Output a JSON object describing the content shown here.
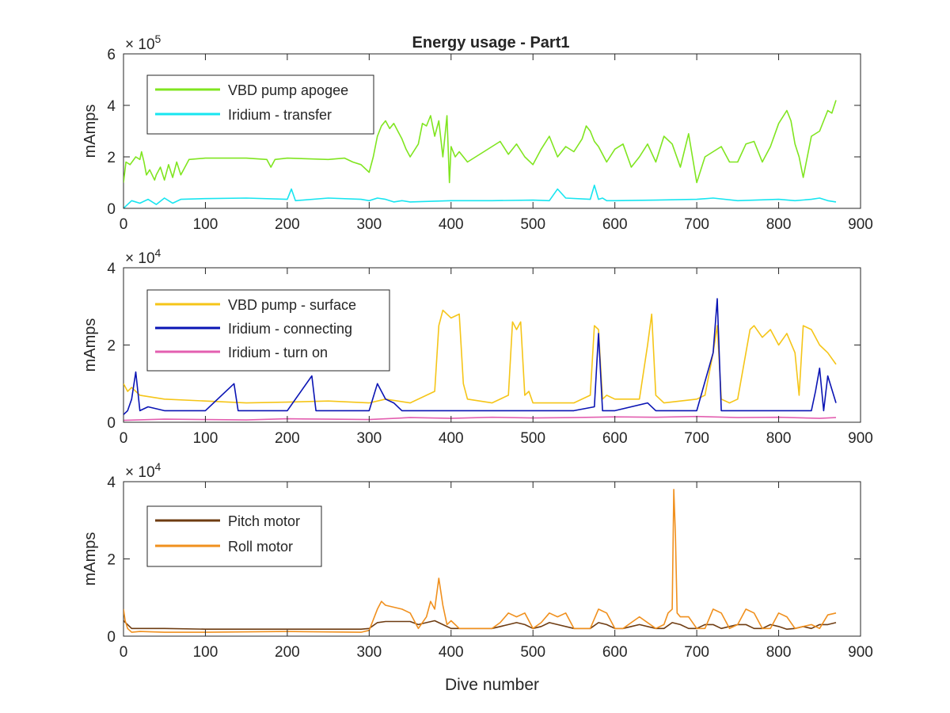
{
  "figure": {
    "title": "Energy usage - Part1"
  },
  "chart_data": [
    {
      "type": "line",
      "title": "Energy usage - Part1",
      "xlabel": "",
      "ylabel": "mAmps",
      "exponent_base": "× 10",
      "exponent_power": "5",
      "xlim": [
        0,
        900
      ],
      "ylim": [
        0,
        600000
      ],
      "xticks": [
        "0",
        "100",
        "200",
        "300",
        "400",
        "500",
        "600",
        "700",
        "800",
        "900"
      ],
      "yticks": [
        "0",
        "2",
        "4",
        "6"
      ],
      "ytick_values": [
        0,
        200000,
        400000,
        600000
      ],
      "grid": false,
      "legend_position": "top-left",
      "series": [
        {
          "name": "VBD pump apogee",
          "color": "#80e520",
          "x": [
            0,
            3,
            8,
            15,
            20,
            22,
            25,
            28,
            32,
            38,
            40,
            45,
            50,
            55,
            60,
            65,
            70,
            80,
            100,
            150,
            175,
            180,
            185,
            200,
            250,
            270,
            280,
            290,
            300,
            305,
            310,
            315,
            320,
            325,
            330,
            335,
            340,
            345,
            350,
            360,
            365,
            370,
            375,
            380,
            385,
            390,
            395,
            398,
            400,
            405,
            410,
            420,
            440,
            460,
            470,
            480,
            490,
            500,
            510,
            520,
            530,
            540,
            550,
            560,
            565,
            570,
            575,
            580,
            590,
            600,
            610,
            620,
            630,
            640,
            650,
            660,
            670,
            680,
            690,
            700,
            710,
            720,
            730,
            740,
            750,
            760,
            770,
            780,
            790,
            800,
            810,
            815,
            820,
            825,
            830,
            840,
            850,
            860,
            865,
            870
          ],
          "y": [
            100000,
            180000,
            170000,
            200000,
            190000,
            220000,
            180000,
            130000,
            150000,
            110000,
            130000,
            160000,
            110000,
            170000,
            120000,
            180000,
            130000,
            190000,
            195000,
            195000,
            190000,
            160000,
            190000,
            195000,
            190000,
            195000,
            180000,
            170000,
            140000,
            200000,
            280000,
            320000,
            340000,
            310000,
            330000,
            300000,
            270000,
            230000,
            200000,
            250000,
            330000,
            320000,
            360000,
            280000,
            340000,
            200000,
            360000,
            100000,
            240000,
            200000,
            220000,
            180000,
            220000,
            260000,
            210000,
            250000,
            200000,
            170000,
            230000,
            280000,
            200000,
            240000,
            220000,
            270000,
            320000,
            300000,
            260000,
            240000,
            180000,
            230000,
            250000,
            160000,
            200000,
            250000,
            180000,
            280000,
            250000,
            160000,
            290000,
            100000,
            200000,
            220000,
            240000,
            180000,
            180000,
            250000,
            260000,
            180000,
            240000,
            330000,
            380000,
            340000,
            250000,
            200000,
            120000,
            280000,
            300000,
            380000,
            370000,
            420000
          ]
        },
        {
          "name": "Iridium - transfer",
          "color": "#17e5f0",
          "x": [
            0,
            5,
            10,
            20,
            30,
            40,
            50,
            60,
            70,
            100,
            150,
            200,
            205,
            210,
            250,
            290,
            300,
            310,
            320,
            330,
            340,
            350,
            380,
            400,
            450,
            500,
            520,
            530,
            540,
            570,
            575,
            580,
            585,
            590,
            600,
            650,
            700,
            720,
            750,
            800,
            820,
            840,
            850,
            860,
            870
          ],
          "y": [
            0,
            15000,
            30000,
            20000,
            35000,
            15000,
            40000,
            20000,
            35000,
            38000,
            40000,
            35000,
            75000,
            30000,
            40000,
            35000,
            30000,
            40000,
            35000,
            25000,
            30000,
            25000,
            28000,
            30000,
            30000,
            32000,
            30000,
            75000,
            40000,
            35000,
            90000,
            35000,
            40000,
            30000,
            30000,
            32000,
            35000,
            40000,
            30000,
            35000,
            30000,
            35000,
            40000,
            30000,
            25000
          ]
        }
      ]
    },
    {
      "type": "line",
      "title": "",
      "xlabel": "",
      "ylabel": "mAmps",
      "exponent_base": "× 10",
      "exponent_power": "4",
      "xlim": [
        0,
        900
      ],
      "ylim": [
        0,
        40000
      ],
      "xticks": [
        "0",
        "100",
        "200",
        "300",
        "400",
        "500",
        "600",
        "700",
        "800",
        "900"
      ],
      "yticks": [
        "0",
        "2",
        "4"
      ],
      "ytick_values": [
        0,
        20000,
        40000
      ],
      "grid": false,
      "legend_position": "top-left",
      "series": [
        {
          "name": "VBD pump - surface",
          "color": "#f5c518",
          "x": [
            0,
            5,
            10,
            20,
            50,
            100,
            150,
            200,
            250,
            300,
            320,
            350,
            380,
            385,
            390,
            400,
            410,
            415,
            420,
            450,
            470,
            475,
            480,
            485,
            490,
            495,
            500,
            550,
            570,
            575,
            580,
            585,
            590,
            600,
            630,
            640,
            645,
            650,
            660,
            700,
            710,
            720,
            725,
            730,
            740,
            750,
            760,
            765,
            770,
            780,
            790,
            800,
            810,
            820,
            825,
            830,
            840,
            850,
            860,
            870
          ],
          "y": [
            10000,
            8000,
            9000,
            7000,
            6000,
            5500,
            5000,
            5200,
            5500,
            5000,
            6000,
            5000,
            8000,
            25000,
            29000,
            27000,
            28000,
            10000,
            6000,
            5000,
            7000,
            26000,
            24000,
            26000,
            7000,
            8000,
            5000,
            5000,
            7000,
            25000,
            24000,
            6000,
            7000,
            6000,
            6000,
            20000,
            28000,
            7000,
            5000,
            6000,
            7000,
            18000,
            25000,
            6000,
            5000,
            6000,
            18000,
            24000,
            25000,
            22000,
            24000,
            20000,
            23000,
            18000,
            7000,
            25000,
            24000,
            20000,
            18000,
            15000
          ]
        },
        {
          "name": "Iridium - connecting",
          "color": "#0a14b4",
          "x": [
            0,
            5,
            10,
            15,
            20,
            30,
            50,
            100,
            135,
            140,
            150,
            200,
            230,
            235,
            240,
            300,
            310,
            320,
            330,
            340,
            350,
            400,
            450,
            500,
            550,
            575,
            580,
            585,
            600,
            640,
            650,
            700,
            720,
            725,
            730,
            740,
            750,
            800,
            840,
            845,
            850,
            855,
            860,
            870
          ],
          "y": [
            2000,
            3000,
            6000,
            13000,
            3000,
            4000,
            3000,
            3000,
            10000,
            3000,
            3000,
            3000,
            12000,
            3000,
            3000,
            3000,
            10000,
            6000,
            5000,
            3000,
            3000,
            3000,
            3000,
            3000,
            3000,
            4000,
            23000,
            3000,
            3000,
            5000,
            3000,
            3000,
            18000,
            32000,
            3000,
            3000,
            3000,
            3000,
            3000,
            8000,
            14000,
            3000,
            12000,
            5000
          ]
        },
        {
          "name": "Iridium - turn on",
          "color": "#e35fb0",
          "x": [
            0,
            50,
            100,
            150,
            200,
            250,
            300,
            350,
            400,
            450,
            500,
            550,
            600,
            650,
            700,
            750,
            800,
            850,
            870
          ],
          "y": [
            500,
            800,
            700,
            600,
            900,
            800,
            700,
            1200,
            1000,
            1300,
            1100,
            1200,
            1400,
            1300,
            1500,
            1200,
            1300,
            1000,
            1200
          ]
        }
      ]
    },
    {
      "type": "line",
      "title": "",
      "xlabel": "Dive number",
      "ylabel": "mAmps",
      "exponent_base": "× 10",
      "exponent_power": "4",
      "xlim": [
        0,
        900
      ],
      "ylim": [
        0,
        40000
      ],
      "xticks": [
        "0",
        "100",
        "200",
        "300",
        "400",
        "500",
        "600",
        "700",
        "800",
        "900"
      ],
      "yticks": [
        "0",
        "2",
        "4"
      ],
      "ytick_values": [
        0,
        20000,
        40000
      ],
      "grid": false,
      "legend_position": "top-left",
      "series": [
        {
          "name": "Pitch motor",
          "color": "#6e3c12",
          "x": [
            0,
            5,
            10,
            50,
            100,
            200,
            290,
            300,
            310,
            320,
            350,
            360,
            370,
            380,
            390,
            400,
            420,
            450,
            470,
            480,
            490,
            500,
            510,
            520,
            530,
            550,
            570,
            580,
            590,
            600,
            610,
            620,
            630,
            650,
            660,
            670,
            680,
            690,
            700,
            710,
            720,
            730,
            740,
            750,
            760,
            770,
            780,
            790,
            800,
            810,
            820,
            830,
            840,
            850,
            860,
            870
          ],
          "y": [
            4000,
            3000,
            2000,
            2000,
            1800,
            1800,
            1800,
            2000,
            3500,
            3800,
            3800,
            3000,
            3500,
            4000,
            3000,
            2000,
            2000,
            2000,
            3000,
            3500,
            3000,
            2000,
            2500,
            3500,
            3000,
            2000,
            2000,
            3500,
            3000,
            2000,
            2000,
            2500,
            3000,
            2000,
            2000,
            3500,
            3000,
            2000,
            2000,
            3000,
            3000,
            2000,
            2500,
            3000,
            3000,
            2000,
            2000,
            3000,
            2500,
            1800,
            2000,
            2500,
            2000,
            3000,
            3000,
            3500
          ]
        },
        {
          "name": "Roll motor",
          "color": "#f0901e",
          "x": [
            0,
            2,
            5,
            10,
            20,
            50,
            100,
            200,
            290,
            300,
            310,
            315,
            320,
            340,
            350,
            360,
            370,
            375,
            380,
            385,
            390,
            395,
            400,
            410,
            420,
            450,
            460,
            470,
            480,
            490,
            500,
            510,
            520,
            530,
            540,
            550,
            570,
            580,
            590,
            600,
            610,
            620,
            630,
            650,
            660,
            665,
            670,
            672,
            674,
            676,
            680,
            690,
            700,
            710,
            720,
            730,
            740,
            750,
            760,
            770,
            780,
            790,
            800,
            810,
            820,
            830,
            840,
            850,
            860,
            870
          ],
          "y": [
            7000,
            4000,
            2000,
            1000,
            1200,
            1000,
            1000,
            1200,
            1000,
            1500,
            7000,
            9000,
            8000,
            7000,
            6000,
            2000,
            5000,
            9000,
            7000,
            15000,
            8000,
            3000,
            4000,
            2000,
            2000,
            2000,
            3500,
            6000,
            5000,
            6000,
            2000,
            3500,
            6000,
            5000,
            6000,
            2000,
            2000,
            7000,
            6000,
            2000,
            2000,
            3500,
            5000,
            2000,
            3000,
            6000,
            7000,
            38000,
            26000,
            6000,
            5000,
            5000,
            2000,
            2000,
            7000,
            6000,
            2000,
            3000,
            7000,
            6000,
            2000,
            2000,
            6000,
            5000,
            2000,
            2500,
            3000,
            2000,
            5500,
            6000
          ]
        }
      ]
    }
  ]
}
